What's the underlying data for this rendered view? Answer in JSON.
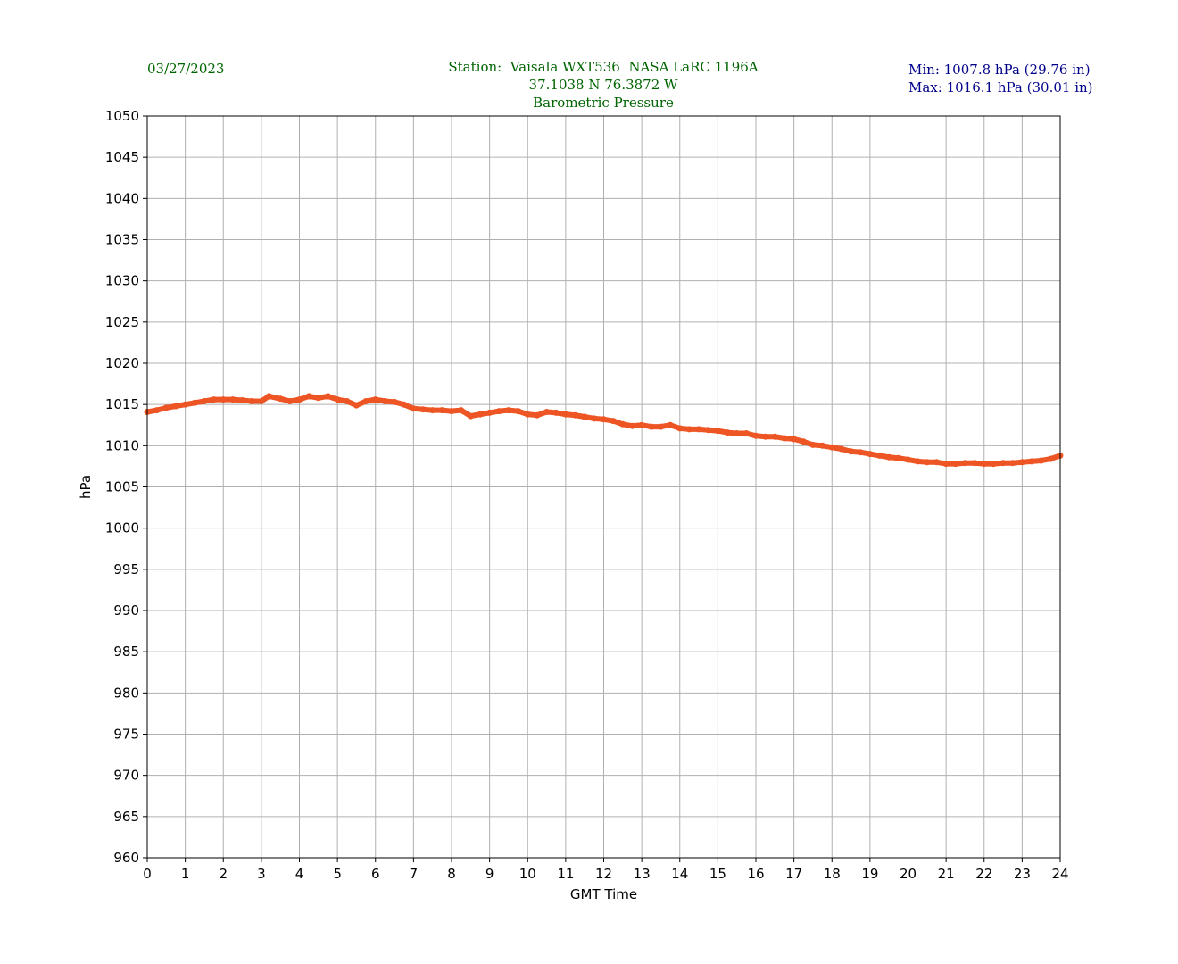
{
  "header": {
    "date": "03/27/2023",
    "station": "Station:  Vaisala WXT536  NASA LaRC 1196A",
    "coords": "37.1038 N 76.3872 W",
    "title": "Barometric Pressure",
    "min_text": "Min: 1007.8 hPa (29.76 in)",
    "max_text": "Max: 1016.1 hPa (30.01 in)"
  },
  "colors": {
    "header_text": "#006400",
    "stats_text": "#00008b",
    "series": "#ee5524",
    "grid": "#b0b0b0"
  },
  "chart_data": {
    "type": "line",
    "xlabel": "GMT Time",
    "ylabel": "hPa",
    "xlim": [
      0,
      24
    ],
    "ylim": [
      960,
      1050
    ],
    "xticks": [
      0,
      1,
      2,
      3,
      4,
      5,
      6,
      7,
      8,
      9,
      10,
      11,
      12,
      13,
      14,
      15,
      16,
      17,
      18,
      19,
      20,
      21,
      22,
      23,
      24
    ],
    "yticks": [
      960,
      965,
      970,
      975,
      980,
      985,
      990,
      995,
      1000,
      1005,
      1010,
      1015,
      1020,
      1025,
      1030,
      1035,
      1040,
      1045,
      1050
    ],
    "grid": true,
    "series": [
      {
        "x": [
          0,
          0.25,
          0.5,
          0.75,
          1,
          1.25,
          1.5,
          1.75,
          2,
          2.25,
          2.5,
          2.75,
          3,
          3.2,
          3.5,
          3.75,
          4,
          4.25,
          4.5,
          4.75,
          5,
          5.25,
          5.5,
          5.75,
          6,
          6.25,
          6.5,
          6.75,
          7,
          7.25,
          7.5,
          7.75,
          8,
          8.25,
          8.5,
          8.75,
          9,
          9.25,
          9.5,
          9.75,
          10,
          10.25,
          10.5,
          10.75,
          11,
          11.25,
          11.5,
          11.75,
          12,
          12.25,
          12.5,
          12.75,
          13,
          13.25,
          13.5,
          13.75,
          14,
          14.25,
          14.5,
          14.75,
          15,
          15.25,
          15.5,
          15.75,
          16,
          16.25,
          16.5,
          16.75,
          17,
          17.25,
          17.5,
          17.75,
          18,
          18.25,
          18.5,
          18.75,
          19,
          19.25,
          19.5,
          19.75,
          20,
          20.25,
          20.5,
          20.75,
          21,
          21.25,
          21.5,
          21.75,
          22,
          22.25,
          22.5,
          22.75,
          23,
          23.25,
          23.5,
          23.75,
          24
        ],
        "y": [
          1014.1,
          1014.3,
          1014.6,
          1014.8,
          1015.0,
          1015.2,
          1015.4,
          1015.6,
          1015.6,
          1015.6,
          1015.5,
          1015.4,
          1015.4,
          1016.0,
          1015.7,
          1015.4,
          1015.6,
          1016.0,
          1015.8,
          1016.0,
          1015.6,
          1015.4,
          1014.9,
          1015.4,
          1015.6,
          1015.4,
          1015.3,
          1015.0,
          1014.5,
          1014.4,
          1014.3,
          1014.3,
          1014.2,
          1014.3,
          1013.6,
          1013.8,
          1014.0,
          1014.2,
          1014.3,
          1014.2,
          1013.8,
          1013.7,
          1014.1,
          1014.0,
          1013.8,
          1013.7,
          1013.5,
          1013.3,
          1013.2,
          1013.0,
          1012.6,
          1012.4,
          1012.5,
          1012.3,
          1012.3,
          1012.5,
          1012.1,
          1012.0,
          1012.0,
          1011.9,
          1011.8,
          1011.6,
          1011.5,
          1011.5,
          1011.2,
          1011.1,
          1011.1,
          1010.9,
          1010.8,
          1010.5,
          1010.1,
          1010.0,
          1009.8,
          1009.6,
          1009.3,
          1009.2,
          1009.0,
          1008.8,
          1008.6,
          1008.5,
          1008.3,
          1008.1,
          1008.0,
          1008.0,
          1007.8,
          1007.8,
          1007.9,
          1007.9,
          1007.8,
          1007.8,
          1007.9,
          1007.9,
          1008.0,
          1008.1,
          1008.2,
          1008.4,
          1008.8
        ]
      }
    ]
  }
}
